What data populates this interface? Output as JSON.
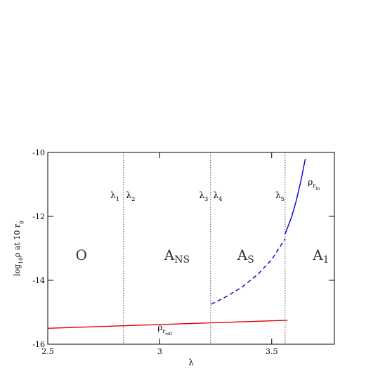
{
  "chart_data": {
    "type": "line",
    "x_label": [
      {
        "text": "λ"
      }
    ],
    "y_label": [
      {
        "text": "log"
      },
      {
        "text": "10",
        "shift": "sub"
      },
      {
        "text": "ρ at 10 r"
      },
      {
        "text": "g",
        "shift": "sub"
      }
    ],
    "xlim": [
      2.5,
      3.78
    ],
    "ylim": [
      -16,
      -10
    ],
    "xticks": [
      2.5,
      3,
      3.5
    ],
    "yticks": [
      -16,
      -14,
      -12,
      -10
    ],
    "vlines": [
      2.838,
      3.227,
      3.56
    ],
    "series": [
      {
        "color": "#e00000",
        "dash": false,
        "x": [
          2.5,
          3.57
        ],
        "y": [
          -15.5,
          -15.25
        ]
      },
      {
        "color": "#0000cc",
        "dash": true,
        "x": [
          3.23,
          3.3,
          3.37,
          3.44,
          3.5,
          3.56
        ],
        "y": [
          -14.75,
          -14.5,
          -14.2,
          -13.8,
          -13.35,
          -12.7
        ]
      },
      {
        "color": "#0000cc",
        "dash": false,
        "x": [
          3.56,
          3.59,
          3.61,
          3.63,
          3.65
        ],
        "y": [
          -12.55,
          -12.0,
          -11.5,
          -10.9,
          -10.2
        ]
      }
    ],
    "annotations": [
      {
        "x": 2.8,
        "y": -11.43,
        "size": "normal",
        "parts": [
          {
            "text": "λ"
          },
          {
            "text": "1",
            "shift": "sub"
          }
        ]
      },
      {
        "x": 2.87,
        "y": -11.43,
        "size": "normal",
        "parts": [
          {
            "text": "λ"
          },
          {
            "text": "2",
            "shift": "sub"
          }
        ]
      },
      {
        "x": 3.196,
        "y": -11.43,
        "size": "normal",
        "parts": [
          {
            "text": "λ"
          },
          {
            "text": "3",
            "shift": "sub"
          }
        ]
      },
      {
        "x": 3.259,
        "y": -11.43,
        "size": "normal",
        "parts": [
          {
            "text": "λ"
          },
          {
            "text": "4",
            "shift": "sub"
          }
        ]
      },
      {
        "x": 3.537,
        "y": -11.43,
        "size": "normal",
        "parts": [
          {
            "text": "λ"
          },
          {
            "text": "5",
            "shift": "sub"
          }
        ]
      },
      {
        "x": 2.65,
        "y": -13.36,
        "size": "big",
        "parts": [
          {
            "text": "O"
          }
        ]
      },
      {
        "x": 3.077,
        "y": -13.36,
        "size": "big",
        "parts": [
          {
            "text": "A"
          },
          {
            "text": "NS",
            "shift": "sub"
          }
        ]
      },
      {
        "x": 3.384,
        "y": -13.36,
        "size": "big",
        "parts": [
          {
            "text": "A"
          },
          {
            "text": "S",
            "shift": "sub"
          }
        ]
      },
      {
        "x": 3.72,
        "y": -13.36,
        "size": "big",
        "parts": [
          {
            "text": "A"
          },
          {
            "text": "1",
            "shift": "sub"
          }
        ]
      },
      {
        "x": 3.023,
        "y": -15.56,
        "size": "normal",
        "parts": [
          {
            "text": "ρ"
          },
          {
            "text": "r",
            "shift": "sub"
          },
          {
            "text": "out",
            "shift": "subsub"
          }
        ]
      },
      {
        "x": 3.688,
        "y": -11.01,
        "size": "normal",
        "parts": [
          {
            "text": "ρ"
          },
          {
            "text": "r",
            "shift": "sub"
          },
          {
            "text": "in",
            "shift": "subsub"
          }
        ]
      }
    ]
  }
}
